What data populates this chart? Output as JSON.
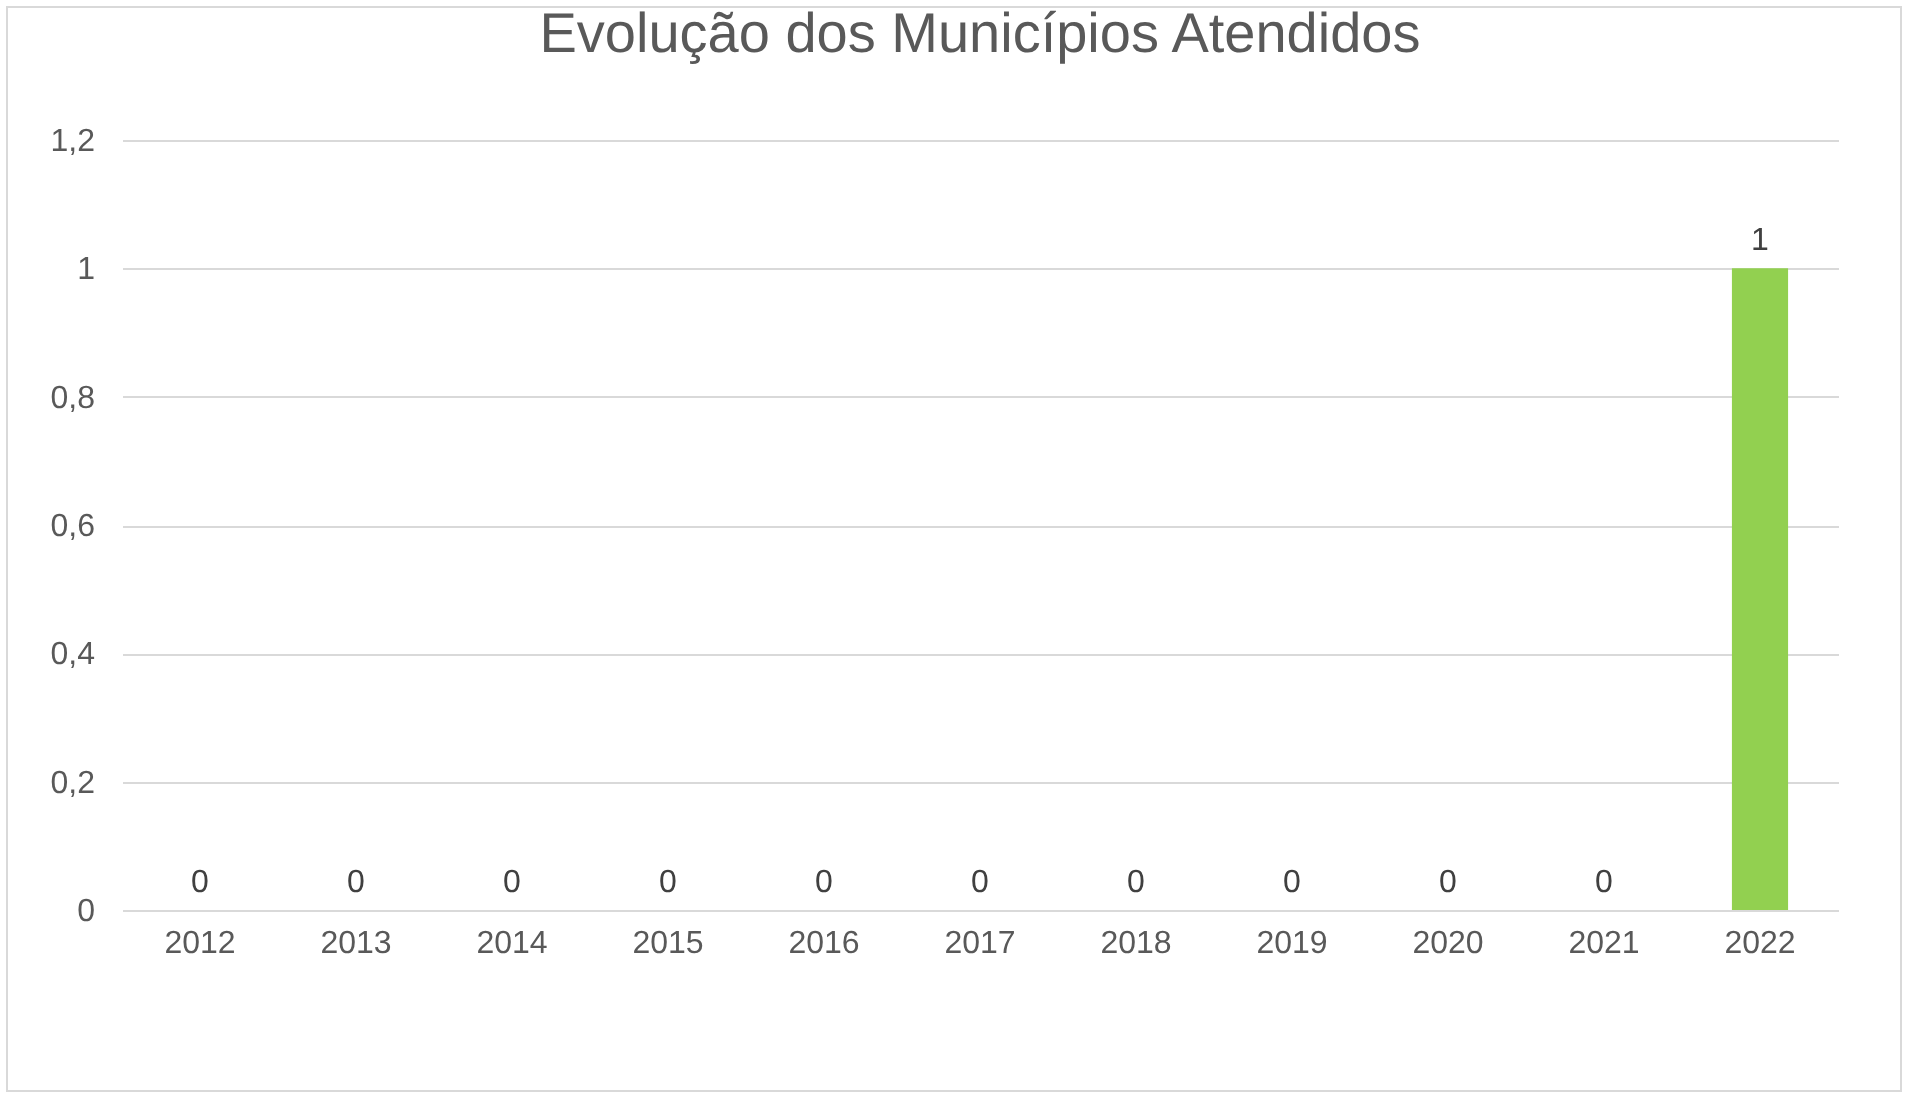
{
  "chart_data": {
    "type": "bar",
    "title": "Evolução dos Municípios Atendidos",
    "categories": [
      "2012",
      "2013",
      "2014",
      "2015",
      "2016",
      "2017",
      "2018",
      "2019",
      "2020",
      "2021",
      "2022"
    ],
    "values": [
      0,
      0,
      0,
      0,
      0,
      0,
      0,
      0,
      0,
      0,
      1
    ],
    "color": "#92d050",
    "ylim": [
      0,
      1.2
    ],
    "yticks": [
      0,
      {
        "value": 0.2,
        "label": "0,2"
      },
      {
        "value": 0.4,
        "label": "0,4"
      },
      {
        "value": 0.6,
        "label": "0,6"
      },
      {
        "value": 0.8,
        "label": "0,8"
      },
      1,
      {
        "value": 1.2,
        "label": "1,2"
      }
    ],
    "grid": "y",
    "data_labels": true
  }
}
